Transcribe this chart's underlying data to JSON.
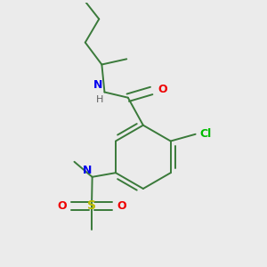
{
  "background_color": "#ebebeb",
  "bond_color": "#3a7a3a",
  "atom_colors": {
    "N": "#0000ee",
    "O": "#ee0000",
    "Cl": "#00bb00",
    "S": "#bbbb00",
    "C": "#3a7a3a",
    "H": "#808080"
  },
  "figsize": [
    3.0,
    3.0
  ],
  "dpi": 100,
  "lw": 1.4
}
